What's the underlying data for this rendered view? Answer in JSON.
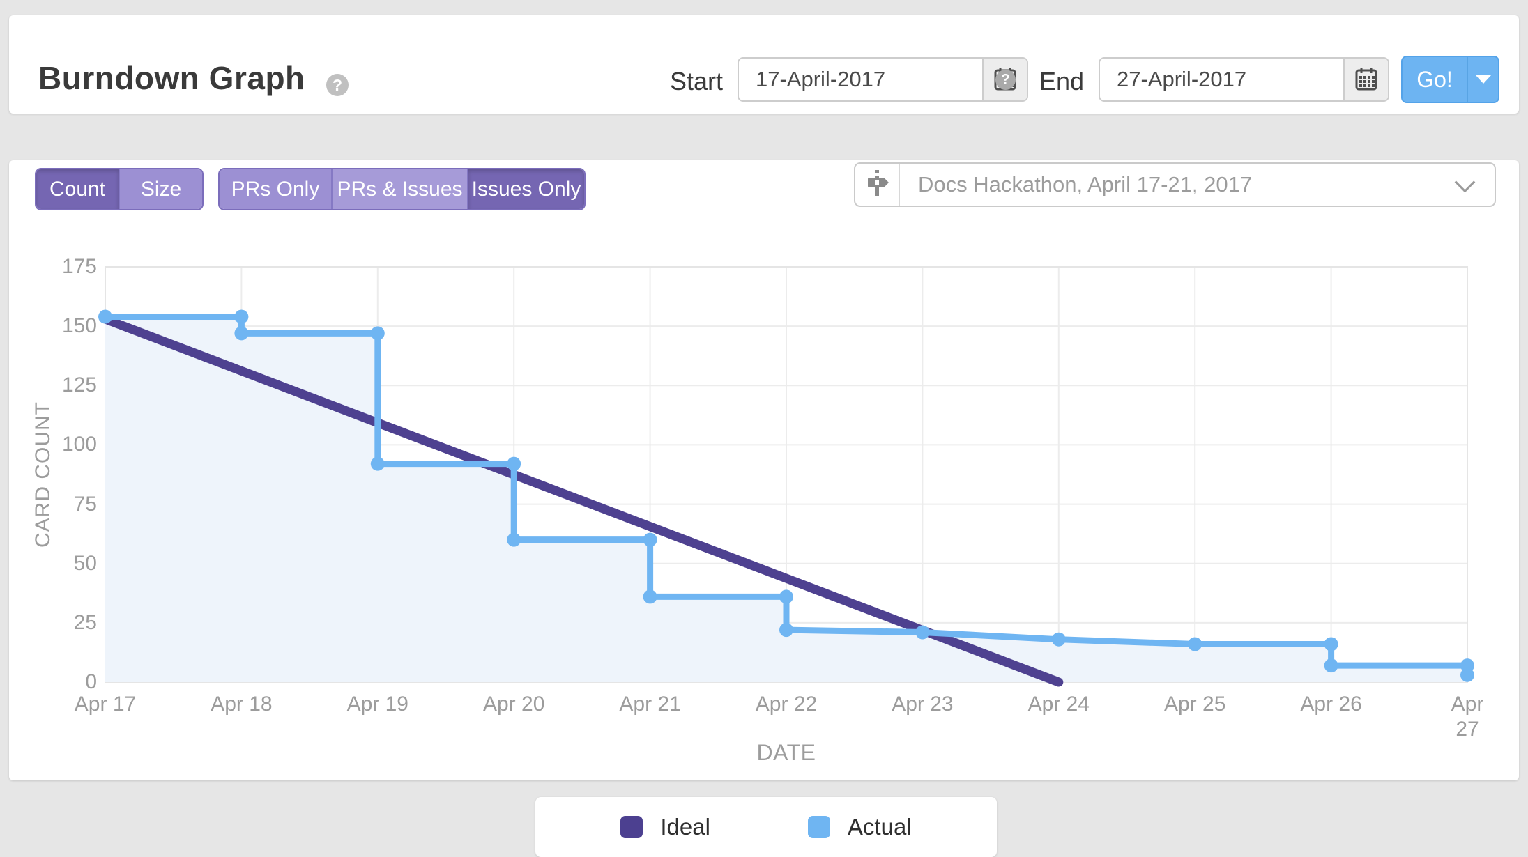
{
  "icons": {
    "help": "?"
  },
  "header": {
    "title": "Burndown Graph",
    "start_label": "Start",
    "start_value": "17-April-2017",
    "end_label": "End",
    "end_value": "27-April-2017",
    "go_label": "Go!"
  },
  "toolbar": {
    "count_size": {
      "options": [
        "Count",
        "Size"
      ],
      "selected": "Count"
    },
    "pr_issue": {
      "options": [
        "PRs Only",
        "PRs & Issues",
        "Issues Only"
      ],
      "selected": "Issues Only"
    },
    "milestone": {
      "value": "Docs Hackathon, April 17-21, 2017"
    }
  },
  "chart_data": {
    "type": "line",
    "xlabel": "DATE",
    "ylabel": "CARD COUNT",
    "x_labels": [
      "Apr 17",
      "Apr 18",
      "Apr 19",
      "Apr 20",
      "Apr 21",
      "Apr 22",
      "Apr 23",
      "Apr 24",
      "Apr 25",
      "Apr 26",
      "Apr 27"
    ],
    "ylim": [
      0,
      175
    ],
    "ytick_step": 25,
    "grid": true,
    "legend_position": "bottom",
    "series": [
      {
        "name": "Ideal",
        "color": "#4e4190",
        "stroke_width": 13,
        "points": [
          {
            "x": 0,
            "y": 153
          },
          {
            "x": 7,
            "y": 0
          }
        ]
      },
      {
        "name": "Actual",
        "color": "#6fb5f2",
        "area_fill": "#eef4fb",
        "stroke_width": 9,
        "dot_radius": 10,
        "points": [
          {
            "x": 0,
            "y": 154
          },
          {
            "x": 1,
            "y": 154
          },
          {
            "x": 1,
            "y": 147
          },
          {
            "x": 2,
            "y": 147
          },
          {
            "x": 2,
            "y": 92
          },
          {
            "x": 3,
            "y": 92
          },
          {
            "x": 3,
            "y": 60
          },
          {
            "x": 4,
            "y": 60
          },
          {
            "x": 4,
            "y": 36
          },
          {
            "x": 5,
            "y": 36
          },
          {
            "x": 5,
            "y": 22
          },
          {
            "x": 6,
            "y": 21
          },
          {
            "x": 7,
            "y": 18
          },
          {
            "x": 8,
            "y": 16
          },
          {
            "x": 9,
            "y": 16
          },
          {
            "x": 9,
            "y": 7
          },
          {
            "x": 10,
            "y": 7
          },
          {
            "x": 10,
            "y": 3
          }
        ]
      }
    ]
  },
  "legend": [
    {
      "label": "Ideal",
      "color": "#4c4090"
    },
    {
      "label": "Actual",
      "color": "#6fb5f2"
    }
  ]
}
